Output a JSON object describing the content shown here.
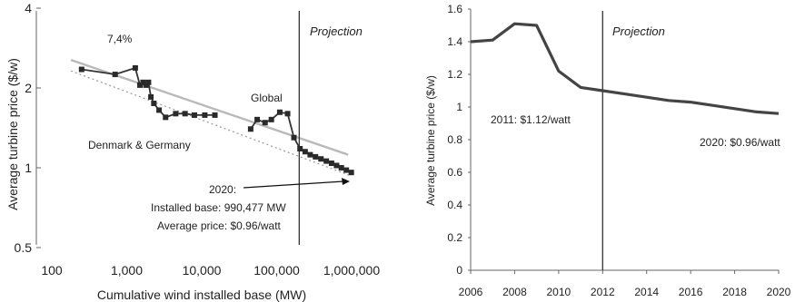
{
  "chart_data": [
    {
      "type": "line",
      "xlabel": "Cumulative wind installed base (MW)",
      "ylabel": "Average turbine price ($/w)",
      "xscale": "log",
      "yscale": "log",
      "xlim": [
        100,
        1000000
      ],
      "ylim": [
        0.5,
        4
      ],
      "x_ticks": [
        {
          "value": 100,
          "label": "100"
        },
        {
          "value": 1000,
          "label": "1,000"
        },
        {
          "value": 10000,
          "label": "10,000"
        },
        {
          "value": 100000,
          "label": "100,000"
        },
        {
          "value": 1000000,
          "label": "1,000,000"
        }
      ],
      "y_ticks": [
        {
          "value": 0.5,
          "label": "0.5"
        },
        {
          "value": 1,
          "label": "1"
        },
        {
          "value": 2,
          "label": "2"
        },
        {
          "value": 4,
          "label": "4"
        }
      ],
      "grid": false,
      "series": [
        {
          "name": "Denmark & Germany",
          "x": [
            250,
            700,
            1300,
            1500,
            1650,
            1800,
            1950,
            2100,
            2300,
            2700,
            3300,
            4500,
            6000,
            8000,
            11000,
            15000
          ],
          "y": [
            2.35,
            2.25,
            2.38,
            2.05,
            2.1,
            2.05,
            2.1,
            1.85,
            1.75,
            1.65,
            1.55,
            1.6,
            1.6,
            1.58,
            1.58,
            1.58
          ]
        },
        {
          "name": "Global",
          "x": [
            45000,
            55000,
            70000,
            85000,
            110000,
            140000,
            170000,
            205000,
            240000,
            280000,
            330000,
            390000,
            460000,
            540000,
            630000,
            730000,
            850000,
            990477
          ],
          "y": [
            1.4,
            1.52,
            1.48,
            1.52,
            1.62,
            1.6,
            1.3,
            1.18,
            1.15,
            1.12,
            1.1,
            1.08,
            1.06,
            1.04,
            1.02,
            1.0,
            0.98,
            0.96
          ]
        }
      ],
      "trendlines": [
        {
          "style": "solid",
          "x": [
            180,
            900000
          ],
          "y": [
            2.55,
            1.12
          ]
        },
        {
          "style": "dotted",
          "x": [
            180,
            1000000
          ],
          "y": [
            2.32,
            0.93
          ]
        }
      ],
      "projection_x": 200000,
      "annotations": {
        "projection": "Projection",
        "rate": "7,4%",
        "global": "Global",
        "denmark_germany": "Denmark & Germany",
        "note_line1": "2020:",
        "note_line2": "Installed base: 990,477 MW",
        "note_line3": "Average price: $0.96/watt"
      }
    },
    {
      "type": "line",
      "xlabel": "",
      "ylabel": "Average turbine price ($/w)",
      "xlim": [
        2006,
        2020
      ],
      "ylim": [
        0,
        1.6
      ],
      "x_ticks": [
        2006,
        2008,
        2010,
        2012,
        2014,
        2016,
        2018,
        2020
      ],
      "y_ticks": [
        {
          "value": 0,
          "label": "0"
        },
        {
          "value": 0.2,
          "label": "0.2"
        },
        {
          "value": 0.4,
          "label": "0.4"
        },
        {
          "value": 0.6,
          "label": "0.6"
        },
        {
          "value": 0.8,
          "label": "0.8"
        },
        {
          "value": 1,
          "label": "1"
        },
        {
          "value": 1.2,
          "label": "1.2"
        },
        {
          "value": 1.4,
          "label": "1.4"
        },
        {
          "value": 1.6,
          "label": "1.6"
        }
      ],
      "grid": false,
      "series": [
        {
          "x": [
            2006,
            2007,
            2008,
            2009,
            2010,
            2011,
            2012,
            2013,
            2014,
            2015,
            2016,
            2017,
            2018,
            2019,
            2020
          ],
          "y": [
            1.4,
            1.41,
            1.51,
            1.5,
            1.22,
            1.12,
            1.1,
            1.08,
            1.06,
            1.04,
            1.03,
            1.01,
            0.99,
            0.97,
            0.96
          ]
        }
      ],
      "projection_x": 2012,
      "annotations": {
        "projection": "Projection",
        "label_2011": "2011: $1.12/watt",
        "label_2020": "2020: $0.96/watt"
      }
    }
  ]
}
